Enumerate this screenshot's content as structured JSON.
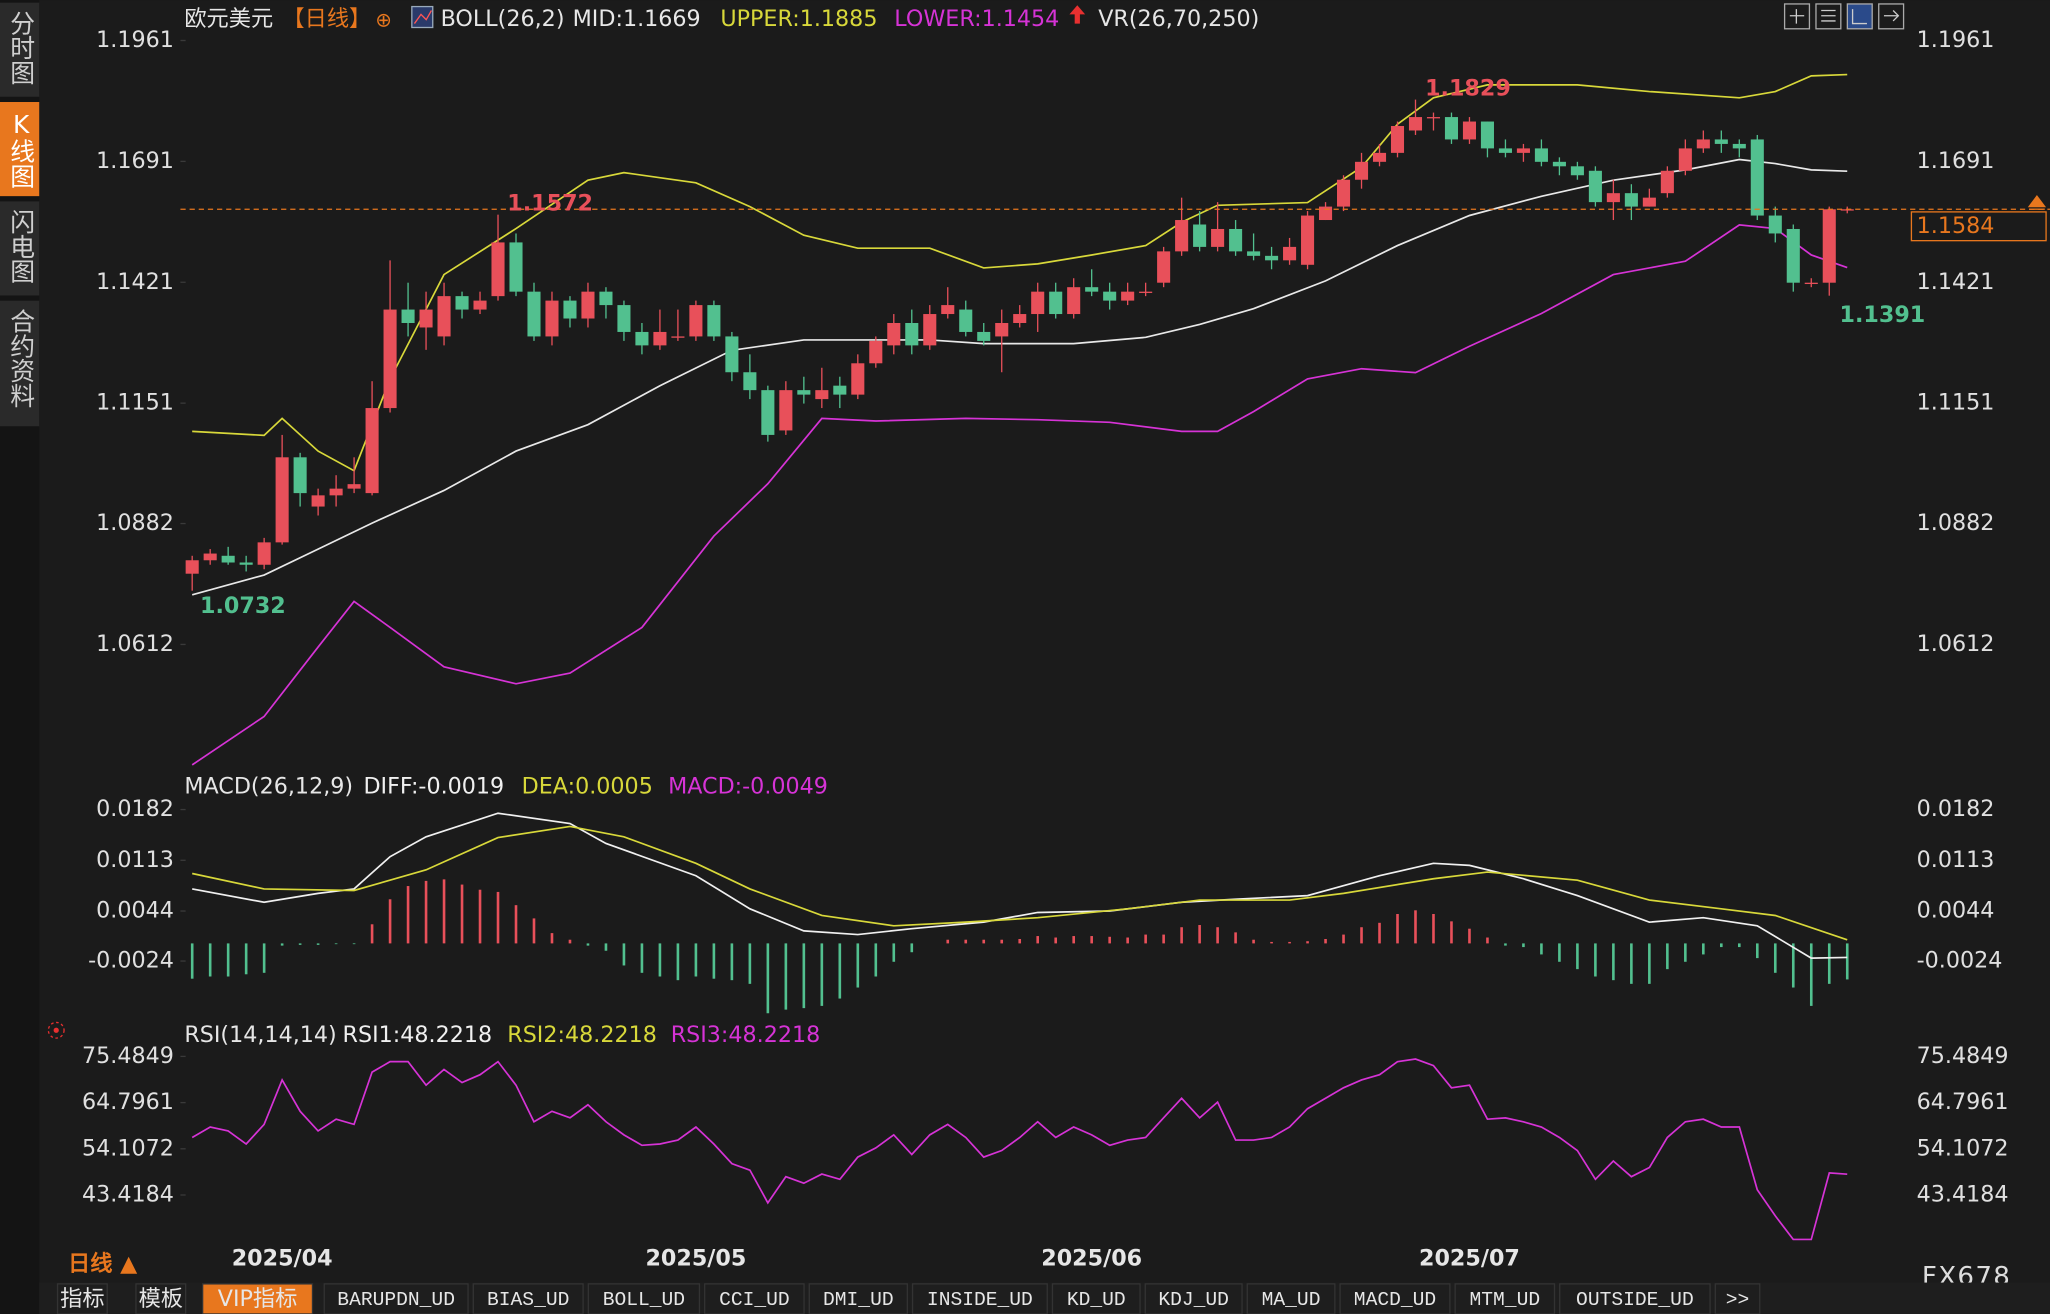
{
  "ui": {
    "sidebar": [
      "分时图",
      "K线图",
      "闪电图",
      "合约资料"
    ],
    "period_switch": "日线 ▲",
    "brand": "FX678",
    "tabs": [
      "指标",
      "模板",
      "VIP指标",
      "BARUPDN_UD",
      "BIAS_UD",
      "BOLL_UD",
      "CCI_UD",
      "DMI_UD",
      "INSIDE_UD",
      "KD_UD",
      "KDJ_UD",
      "MA_UD",
      "MACD_UD",
      "MTM_UD",
      "OUTSIDE_UD",
      ">>"
    ],
    "active_tab": 2
  },
  "chart_data": [
    {
      "type": "candlestick",
      "title": "欧元美元",
      "period": "【日线】",
      "indicator": "BOLL(26,2)",
      "extra": "VR(26,70,250)",
      "categories": [
        null,
        null,
        null,
        null,
        null,
        "2025/04",
        null,
        null,
        null,
        null,
        null,
        null,
        null,
        null,
        null,
        null,
        null,
        null,
        null,
        null,
        null,
        null,
        null,
        null,
        null,
        null,
        null,
        null,
        "2025/05",
        null,
        null,
        null,
        null,
        null,
        null,
        null,
        null,
        null,
        null,
        null,
        null,
        null,
        null,
        null,
        null,
        null,
        null,
        null,
        null,
        null,
        "2025/06",
        null,
        null,
        null,
        null,
        null,
        null,
        null,
        null,
        null,
        null,
        null,
        null,
        null,
        null,
        null,
        null,
        null,
        null,
        null,
        null,
        "2025/07",
        null,
        null,
        null,
        null,
        null,
        null,
        null,
        null,
        null,
        null,
        null,
        null,
        null,
        null,
        null,
        null,
        null,
        null,
        null,
        null,
        null
      ],
      "open": [
        1.077,
        1.08,
        1.081,
        1.0795,
        1.079,
        1.084,
        1.103,
        1.092,
        1.0945,
        1.096,
        1.095,
        1.114,
        1.136,
        1.132,
        1.13,
        1.139,
        1.136,
        1.139,
        1.151,
        1.14,
        1.13,
        1.138,
        1.134,
        1.14,
        1.137,
        1.131,
        1.128,
        1.13,
        1.13,
        1.137,
        1.13,
        1.122,
        1.118,
        1.109,
        1.118,
        1.116,
        1.119,
        1.117,
        1.124,
        1.128,
        1.133,
        1.128,
        1.135,
        1.136,
        1.131,
        1.13,
        1.133,
        1.135,
        1.14,
        1.135,
        1.141,
        1.14,
        1.138,
        1.14,
        1.142,
        1.149,
        1.155,
        1.15,
        1.154,
        1.149,
        1.148,
        1.147,
        1.146,
        1.156,
        1.159,
        1.165,
        1.169,
        1.171,
        1.176,
        1.179,
        1.179,
        1.174,
        1.178,
        1.172,
        1.171,
        1.172,
        1.169,
        1.168,
        1.167,
        1.16,
        1.162,
        1.159,
        1.162,
        1.167,
        1.172,
        1.174,
        1.173,
        1.174,
        1.157,
        1.154,
        1.142,
        1.142,
        1.1584
      ],
      "high": [
        1.081,
        1.0825,
        1.083,
        1.081,
        1.085,
        1.108,
        1.104,
        1.096,
        1.099,
        1.103,
        1.12,
        1.147,
        1.142,
        1.14,
        1.142,
        1.14,
        1.14,
        1.1572,
        1.153,
        1.142,
        1.14,
        1.139,
        1.142,
        1.141,
        1.138,
        1.133,
        1.136,
        1.136,
        1.138,
        1.138,
        1.131,
        1.126,
        1.119,
        1.12,
        1.121,
        1.123,
        1.121,
        1.126,
        1.13,
        1.135,
        1.136,
        1.137,
        1.141,
        1.138,
        1.133,
        1.136,
        1.137,
        1.142,
        1.142,
        1.143,
        1.145,
        1.142,
        1.142,
        1.142,
        1.15,
        1.161,
        1.158,
        1.16,
        1.156,
        1.153,
        1.15,
        1.152,
        1.158,
        1.16,
        1.166,
        1.171,
        1.173,
        1.178,
        1.1829,
        1.18,
        1.18,
        1.179,
        1.178,
        1.174,
        1.173,
        1.174,
        1.17,
        1.169,
        1.168,
        1.165,
        1.164,
        1.163,
        1.168,
        1.174,
        1.176,
        1.176,
        1.174,
        1.175,
        1.159,
        1.155,
        1.143,
        1.159,
        1.159
      ],
      "low": [
        1.0732,
        1.079,
        1.079,
        1.0775,
        1.078,
        1.0835,
        1.092,
        1.09,
        1.092,
        1.095,
        1.0945,
        1.113,
        1.13,
        1.127,
        1.128,
        1.134,
        1.135,
        1.138,
        1.139,
        1.129,
        1.128,
        1.132,
        1.132,
        1.134,
        1.129,
        1.126,
        1.127,
        1.129,
        1.129,
        1.129,
        1.12,
        1.116,
        1.1065,
        1.108,
        1.115,
        1.114,
        1.114,
        1.116,
        1.123,
        1.126,
        1.126,
        1.127,
        1.134,
        1.13,
        1.128,
        1.122,
        1.132,
        1.131,
        1.134,
        1.134,
        1.139,
        1.136,
        1.137,
        1.139,
        1.141,
        1.148,
        1.149,
        1.149,
        1.148,
        1.147,
        1.145,
        1.146,
        1.145,
        1.156,
        1.158,
        1.163,
        1.168,
        1.17,
        1.175,
        1.176,
        1.173,
        1.173,
        1.17,
        1.17,
        1.169,
        1.168,
        1.166,
        1.165,
        1.159,
        1.156,
        1.156,
        1.159,
        1.161,
        1.166,
        1.171,
        1.171,
        1.17,
        1.156,
        1.151,
        1.14,
        1.141,
        1.1391,
        1.1575
      ],
      "close": [
        1.08,
        1.0815,
        1.0795,
        1.079,
        1.084,
        1.103,
        1.095,
        1.0945,
        1.096,
        1.097,
        1.114,
        1.136,
        1.133,
        1.136,
        1.139,
        1.136,
        1.138,
        1.151,
        1.14,
        1.13,
        1.138,
        1.134,
        1.14,
        1.137,
        1.131,
        1.128,
        1.131,
        1.13,
        1.137,
        1.13,
        1.122,
        1.118,
        1.108,
        1.118,
        1.117,
        1.118,
        1.117,
        1.124,
        1.129,
        1.133,
        1.128,
        1.135,
        1.137,
        1.131,
        1.129,
        1.133,
        1.135,
        1.14,
        1.135,
        1.141,
        1.14,
        1.138,
        1.14,
        1.14,
        1.149,
        1.156,
        1.15,
        1.154,
        1.149,
        1.148,
        1.147,
        1.15,
        1.157,
        1.159,
        1.165,
        1.169,
        1.171,
        1.177,
        1.179,
        1.179,
        1.174,
        1.178,
        1.172,
        1.171,
        1.172,
        1.169,
        1.168,
        1.166,
        1.16,
        1.162,
        1.159,
        1.161,
        1.167,
        1.172,
        1.174,
        1.173,
        1.172,
        1.157,
        1.153,
        1.142,
        1.142,
        1.1584,
        1.1584
      ],
      "up_color": "#e8505a",
      "down_color": "#52c08f",
      "overlays": [
        {
          "name": "MID:1.1669",
          "color": "#e8e8e8",
          "x": [
            0,
            4,
            7,
            10,
            14,
            18,
            22,
            26,
            30,
            34,
            38,
            41,
            44,
            49,
            53,
            56,
            59,
            63,
            67,
            71,
            75,
            79,
            83,
            86,
            88,
            90,
            92
          ],
          "values": [
            1.0723,
            1.0767,
            1.0825,
            1.0883,
            1.0956,
            1.1044,
            1.1103,
            1.119,
            1.1269,
            1.1292,
            1.1292,
            1.1292,
            1.1284,
            1.1284,
            1.1298,
            1.1327,
            1.1362,
            1.1424,
            1.1503,
            1.157,
            1.1613,
            1.1649,
            1.1672,
            1.1695,
            1.1686,
            1.1672,
            1.1669
          ]
        },
        {
          "name": "UPPER:1.1885",
          "color": "#d8d83a",
          "x": [
            0,
            4,
            5,
            7,
            9,
            11,
            14,
            18,
            22,
            24,
            28,
            31,
            34,
            37,
            41,
            44,
            47,
            50,
            53,
            55,
            57,
            62,
            65,
            67,
            69,
            72,
            77,
            81,
            86,
            88,
            90,
            92
          ],
          "values": [
            1.1088,
            1.1079,
            1.1117,
            1.1044,
            1.1,
            1.1205,
            1.1438,
            1.1541,
            1.1649,
            1.1666,
            1.1643,
            1.159,
            1.1526,
            1.1497,
            1.1497,
            1.1453,
            1.1462,
            1.1482,
            1.1503,
            1.1555,
            1.1593,
            1.1599,
            1.1678,
            1.1774,
            1.1833,
            1.1862,
            1.1862,
            1.1847,
            1.1833,
            1.1847,
            1.1882,
            1.1885
          ]
        },
        {
          "name": "LOWER:1.1454",
          "color": "#d633d6",
          "x": [
            0,
            4,
            7,
            9,
            11,
            14,
            18,
            21,
            25,
            29,
            32,
            35,
            38,
            43,
            47,
            51,
            55,
            57,
            59,
            62,
            65,
            68,
            71,
            75,
            79,
            83,
            86,
            88,
            90,
            92
          ],
          "values": [
            1.0343,
            1.0451,
            1.0606,
            1.0708,
            1.065,
            1.0562,
            1.0524,
            1.0548,
            1.065,
            1.0854,
            1.0971,
            1.1117,
            1.1111,
            1.1117,
            1.1114,
            1.1108,
            1.1088,
            1.1088,
            1.1132,
            1.1205,
            1.1228,
            1.1219,
            1.1278,
            1.1351,
            1.1438,
            1.1468,
            1.1549,
            1.1541,
            1.1482,
            1.1454
          ]
        }
      ],
      "annotations": [
        {
          "value": 1.1572,
          "color": "#e8505a"
        },
        {
          "value": 1.1829,
          "color": "#e8505a"
        },
        {
          "value": 1.0732,
          "color": "#52c08f"
        },
        {
          "value": 1.1391,
          "color": "#52c08f"
        }
      ],
      "price_line": 1.1584,
      "price_color": "#e8771e",
      "ylim": [
        1.0343,
        1.1993
      ],
      "yticks": [
        1.1961,
        1.1691,
        1.1421,
        1.1151,
        1.0882,
        1.0612
      ],
      "grid": false
    },
    {
      "type": "macd",
      "title": "MACD(26,12,9)",
      "series": [
        {
          "name": "DIFF:-0.0019",
          "color": "#f0f0f0",
          "x": [
            0,
            4,
            7,
            9,
            11,
            13,
            17,
            21,
            23,
            28,
            31,
            34,
            37,
            40,
            44,
            47,
            51,
            55,
            58,
            62,
            66,
            69,
            71,
            74,
            77,
            81,
            84,
            87,
            90,
            92
          ],
          "values": [
            0.0074,
            0.0056,
            0.0068,
            0.0074,
            0.0118,
            0.0145,
            0.0177,
            0.0163,
            0.0136,
            0.0092,
            0.0047,
            0.0017,
            0.0012,
            0.002,
            0.0029,
            0.0042,
            0.0044,
            0.0056,
            0.006,
            0.0065,
            0.0092,
            0.0109,
            0.0106,
            0.0088,
            0.0065,
            0.0029,
            0.0035,
            0.0024,
            -0.002,
            -0.0019
          ]
        },
        {
          "name": "DEA:0.0005",
          "color": "#d8d83a",
          "x": [
            0,
            4,
            9,
            13,
            17,
            21,
            24,
            28,
            31,
            35,
            39,
            43,
            47,
            52,
            56,
            61,
            64,
            69,
            72,
            77,
            81,
            85,
            88,
            92
          ],
          "values": [
            0.0095,
            0.0074,
            0.0072,
            0.01,
            0.0144,
            0.0159,
            0.0145,
            0.0109,
            0.0074,
            0.0038,
            0.0024,
            0.0029,
            0.0035,
            0.0047,
            0.0059,
            0.0059,
            0.0068,
            0.0088,
            0.0097,
            0.0086,
            0.0059,
            0.0047,
            0.0038,
            0.0005
          ]
        }
      ],
      "histogram": {
        "name": "MACD:-0.0049",
        "color": "#d633d6",
        "up_color": "#e8505a",
        "down_color": "#52c08f",
        "values": [
          -0.0048,
          -0.0045,
          -0.0045,
          -0.0042,
          -0.004,
          -0.0003,
          -0.0002,
          -0.0002,
          -0.0001,
          -0.0001,
          0.0026,
          0.006,
          0.0078,
          0.0085,
          0.0087,
          0.008,
          0.0073,
          0.007,
          0.0052,
          0.0034,
          0.0014,
          0.0005,
          -0.0003,
          -0.001,
          -0.003,
          -0.004,
          -0.0045,
          -0.005,
          -0.0045,
          -0.0048,
          -0.005,
          -0.0055,
          -0.0095,
          -0.009,
          -0.0088,
          -0.0085,
          -0.0075,
          -0.006,
          -0.0045,
          -0.0025,
          -0.0012,
          0,
          0.0005,
          0.0005,
          0.0005,
          0.0005,
          0.0006,
          0.001,
          0.0008,
          0.001,
          0.001,
          0.0009,
          0.0008,
          0.0012,
          0.0012,
          0.0022,
          0.0025,
          0.0022,
          0.0015,
          0.0005,
          0.0002,
          0.0002,
          0.0003,
          0.0006,
          0.0012,
          0.0022,
          0.0028,
          0.004,
          0.0045,
          0.004,
          0.003,
          0.002,
          0.0008,
          -0.0003,
          -0.0005,
          -0.0015,
          -0.0025,
          -0.0035,
          -0.0045,
          -0.005,
          -0.0055,
          -0.0055,
          -0.0035,
          -0.0025,
          -0.0015,
          -0.0005,
          -0.0005,
          -0.002,
          -0.004,
          -0.006,
          -0.0085,
          -0.0055,
          -0.0049
        ]
      },
      "ylim": [
        -0.0095,
        0.0225
      ],
      "yticks": [
        0.0182,
        0.0113,
        0.0044,
        -0.0024
      ],
      "grid": false
    },
    {
      "type": "line",
      "title": "RSI(14,14,14)",
      "legend": [
        {
          "text": "RSI1:48.2218",
          "color": "#f0f0f0"
        },
        {
          "text": "RSI2:48.2218",
          "color": "#d8d83a"
        }
      ],
      "series": [
        {
          "name": "RSI3:48.2218",
          "color": "#d633d6",
          "values": [
            56.73,
            59.15,
            58.24,
            55.22,
            59.76,
            70.04,
            62.78,
            58.24,
            60.97,
            59.76,
            71.86,
            74.28,
            74.28,
            68.83,
            72.46,
            69.44,
            71.25,
            74.28,
            68.83,
            60.36,
            62.78,
            61.27,
            64.29,
            60.36,
            57.33,
            54.91,
            55.22,
            56.12,
            59.15,
            55.22,
            50.68,
            49.17,
            41.6,
            47.65,
            46.14,
            48.26,
            47.05,
            52.19,
            54.31,
            57.33,
            52.8,
            57.33,
            59.76,
            56.73,
            52.19,
            53.7,
            56.73,
            60.36,
            56.73,
            59.15,
            57.33,
            54.91,
            56.12,
            56.73,
            61.27,
            65.8,
            61.27,
            64.9,
            56.12,
            56.12,
            56.73,
            59.15,
            63.38,
            65.8,
            68.22,
            70.04,
            71.25,
            74.28,
            74.88,
            73.37,
            68.22,
            68.83,
            60.97,
            61.27,
            60.36,
            59.15,
            56.73,
            53.7,
            47.05,
            51.28,
            47.65,
            49.77,
            56.73,
            60.36,
            60.97,
            59.15,
            59.15,
            44.63,
            38.58,
            33.13,
            33.13,
            48.53,
            48.2218
          ]
        }
      ],
      "ylim": [
        31.017,
        77.905
      ],
      "yticks": [
        75.4849,
        64.7961,
        54.1072,
        43.4184
      ],
      "grid": false
    }
  ]
}
